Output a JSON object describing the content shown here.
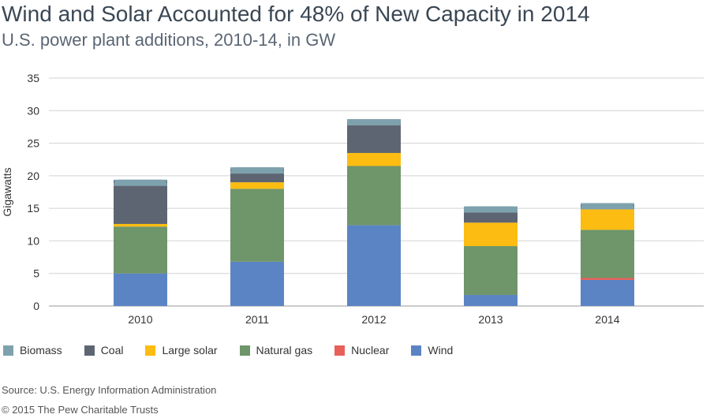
{
  "chart_data": {
    "type": "bar",
    "stacked": true,
    "title": "Wind and Solar Accounted for 48% of New Capacity in 2014",
    "subtitle": "U.S. power plant additions, 2010-14, in GW",
    "xlabel": "",
    "ylabel": "Gigawatts",
    "ylim": [
      0,
      35
    ],
    "yticks": [
      0,
      5,
      10,
      15,
      20,
      25,
      30,
      35
    ],
    "grid": true,
    "legend_position": "bottom-left",
    "categories": [
      "2010",
      "2011",
      "2012",
      "2013",
      "2014"
    ],
    "series": [
      {
        "name": "Wind",
        "color": "#5b84c4",
        "values": [
          5.0,
          6.8,
          12.4,
          1.7,
          4.0
        ]
      },
      {
        "name": "Nuclear",
        "color": "#e8605a",
        "values": [
          0,
          0,
          0,
          0,
          0.3
        ]
      },
      {
        "name": "Natural gas",
        "color": "#6f956a",
        "values": [
          7.2,
          11.2,
          9.1,
          7.5,
          7.4
        ]
      },
      {
        "name": "Large solar",
        "color": "#fcbc11",
        "values": [
          0.4,
          1.0,
          2.0,
          3.6,
          3.2
        ]
      },
      {
        "name": "Coal",
        "color": "#5e6572",
        "values": [
          6.6,
          2.0,
          4.7,
          1.7,
          0.6
        ]
      },
      {
        "name": "Biomass",
        "color": "#7ea2ad",
        "values": [
          0.2,
          0.3,
          0.5,
          0.8,
          0.3
        ]
      }
    ],
    "legend_order": [
      "Biomass",
      "Coal",
      "Large solar",
      "Natural gas",
      "Nuclear",
      "Wind"
    ]
  },
  "footer": {
    "source": "Source: U.S. Energy Information Administration",
    "copyright": "© 2015 The Pew Charitable Trusts"
  }
}
